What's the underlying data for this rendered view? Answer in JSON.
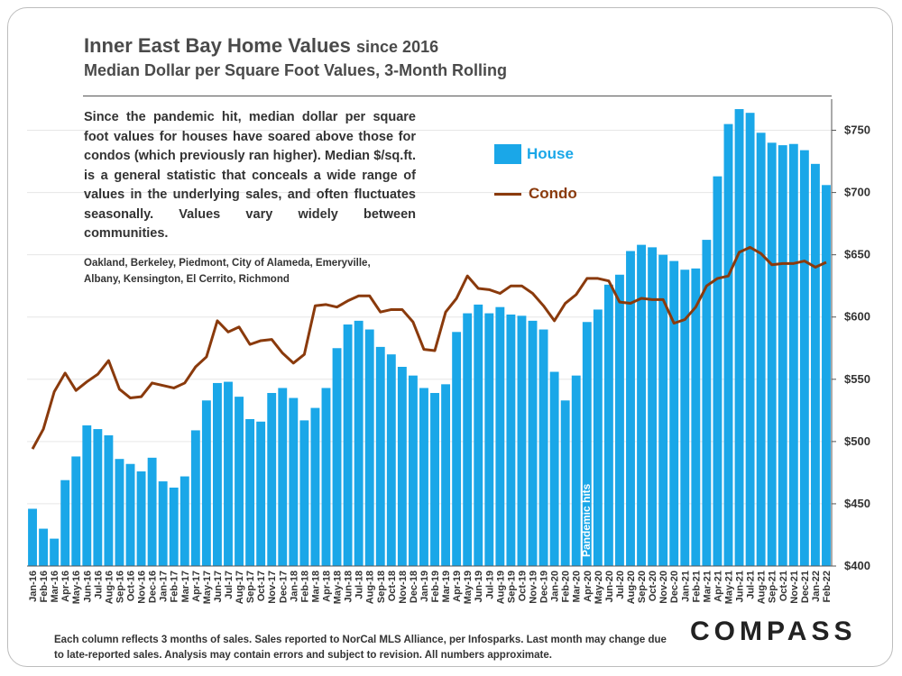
{
  "header": {
    "title": "Inner East Bay Home Values",
    "title_suffix": "since 2016",
    "subtitle": "Median Dollar per Square Foot Values, 3-Month Rolling"
  },
  "description": "Since the pandemic hit, median dollar per square foot values for houses have soared above those for condos (which previously ran higher). Median $/sq.ft. is a general statistic that conceals a wide range of values in the underlying sales, and often fluctuates seasonally. Values vary widely between communities.",
  "cities": "Oakland, Berkeley, Piedmont, City of Alameda, Emeryville, Albany, Kensington, El Cerrito, Richmond",
  "legend": {
    "house": "House",
    "condo": "Condo"
  },
  "footer": "Each column reflects 3 months of sales. Sales reported to NorCal MLS Alliance, per Infosparks. Last month may change due to late-reported sales. Analysis may contain errors and subject to revision. All numbers  approximate.",
  "logo": "COMPASS",
  "colors": {
    "house": "#1aa7e8",
    "condo": "#8a3a0c"
  },
  "chart_data": {
    "type": "bar",
    "title": "Inner East Bay Home Values since 2016",
    "subtitle": "Median Dollar per Square Foot Values, 3-Month Rolling",
    "ylim": [
      400,
      775
    ],
    "yticks": [
      400,
      450,
      500,
      550,
      600,
      650,
      700,
      750
    ],
    "ytick_labels": [
      "$400",
      "$450",
      "$500",
      "$550",
      "$600",
      "$650",
      "$700",
      "$750"
    ],
    "y_axis_side": "right",
    "annotation": {
      "label": "Pandemic hits",
      "category_index": 51
    },
    "categories": [
      "Jan-16",
      "Feb-16",
      "Mar-16",
      "Apr-16",
      "May-16",
      "Jun-16",
      "Jul-16",
      "Aug-16",
      "Sep-16",
      "Oct-16",
      "Nov-16",
      "Dec-16",
      "Jan-17",
      "Feb-17",
      "Mar-17",
      "Apr-17",
      "May-17",
      "Jun-17",
      "Jul-17",
      "Aug-17",
      "Sep-17",
      "Oct-17",
      "Nov-17",
      "Dec-17",
      "Jan-18",
      "Feb-18",
      "Mar-18",
      "Apr-18",
      "May-18",
      "Jun-18",
      "Jul-18",
      "Aug-18",
      "Sep-18",
      "Oct-18",
      "Nov-18",
      "Dec-18",
      "Jan-19",
      "Feb-19",
      "Mar-19",
      "Apr-19",
      "May-19",
      "Jun-19",
      "Jul-19",
      "Aug-19",
      "Sep-19",
      "Oct-19",
      "Nov-19",
      "Dec-19",
      "Jan-20",
      "Feb-20",
      "Mar-20",
      "Apr-20",
      "May-20",
      "Jun-20",
      "Jul-20",
      "Aug-20",
      "Sep-20",
      "Oct-20",
      "Nov-20",
      "Dec-20",
      "Jan-21",
      "Feb-21",
      "Mar-21",
      "Apr-21",
      "May-21",
      "Jun-21",
      "Jul-21",
      "Aug-21",
      "Sep-21",
      "Oct-21",
      "Nov-21",
      "Dec-21",
      "Jan-22",
      "Feb-22"
    ],
    "series": [
      {
        "name": "House",
        "type": "bar",
        "values": [
          446,
          430,
          422,
          469,
          488,
          513,
          510,
          505,
          486,
          482,
          476,
          487,
          468,
          463,
          472,
          509,
          533,
          547,
          548,
          536,
          518,
          516,
          539,
          543,
          535,
          517,
          527,
          543,
          575,
          594,
          597,
          590,
          576,
          570,
          560,
          553,
          543,
          539,
          546,
          588,
          603,
          610,
          603,
          608,
          602,
          601,
          597,
          590,
          556,
          533,
          553,
          596,
          606,
          626,
          634,
          653,
          658,
          656,
          650,
          645,
          638,
          639,
          662,
          713,
          755,
          767,
          764,
          748,
          740,
          738,
          739,
          734,
          723,
          706
        ]
      },
      {
        "name": "Condo",
        "type": "line",
        "values": [
          494,
          510,
          540,
          555,
          541,
          548,
          554,
          565,
          542,
          535,
          536,
          547,
          545,
          543,
          547,
          560,
          568,
          597,
          588,
          592,
          578,
          581,
          582,
          571,
          563,
          570,
          609,
          610,
          608,
          613,
          617,
          617,
          604,
          606,
          606,
          596,
          574,
          573,
          604,
          615,
          633,
          623,
          622,
          619,
          625,
          625,
          619,
          609,
          597,
          611,
          618,
          631,
          631,
          629,
          612,
          611,
          615,
          614,
          614,
          595,
          598,
          608,
          625,
          631,
          633,
          652,
          656,
          651,
          642,
          643,
          643,
          645,
          640,
          644
        ]
      }
    ]
  }
}
